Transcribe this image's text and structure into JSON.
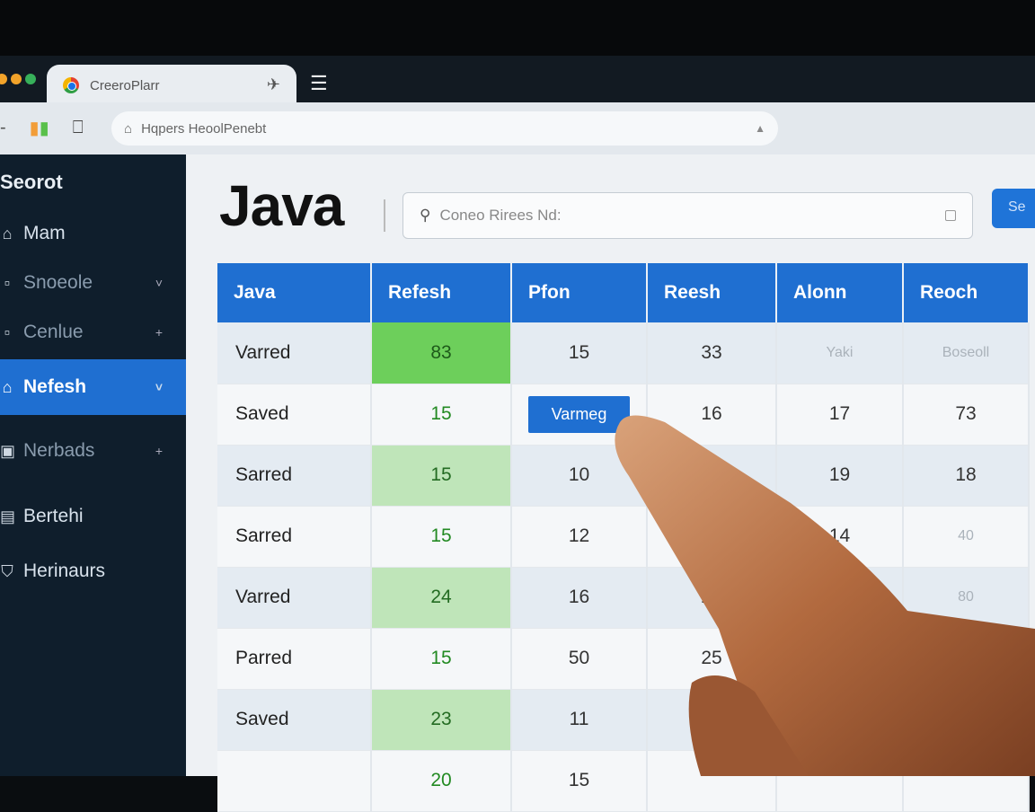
{
  "browser": {
    "tab_title": "CreeroPlarr",
    "address": "Hqpers HeoolPenebt"
  },
  "sidebar": {
    "title": "Seorot",
    "items": [
      {
        "label": "Mam",
        "icon": "home-icon"
      },
      {
        "label": "Snoeole",
        "icon": "square-icon",
        "trail": "˅"
      },
      {
        "label": "Cenlue",
        "icon": "square-icon",
        "trail": "+"
      },
      {
        "label": "Nefesh",
        "icon": "home-icon",
        "trail": "˅",
        "active": true
      },
      {
        "label": "Nerbads",
        "icon": "lock-icon",
        "trail": "+"
      },
      {
        "label": "Bertehi",
        "icon": "list-icon"
      },
      {
        "label": "Herinaurs",
        "icon": "shield-icon"
      }
    ]
  },
  "main": {
    "title": "Java",
    "search_placeholder": "Coneo Rirees Nd:",
    "search_button": "Se"
  },
  "table": {
    "headers": [
      "Java",
      "Refesh",
      "Pfon",
      "Reesh",
      "Alonn",
      "Reoch"
    ],
    "rows": [
      [
        "Varred",
        "83",
        "15",
        "33",
        "Yaki",
        "Boseoll"
      ],
      [
        "Saved",
        "15",
        "Varmeg",
        "16",
        "17",
        "73"
      ],
      [
        "Sarred",
        "15",
        "10",
        "",
        "19",
        "18"
      ],
      [
        "Sarred",
        "15",
        "12",
        "",
        "14",
        "40"
      ],
      [
        "Varred",
        "24",
        "16",
        "20",
        "",
        "80"
      ],
      [
        "Parred",
        "15",
        "50",
        "25",
        "",
        ""
      ],
      [
        "Saved",
        "23",
        "11",
        "",
        "",
        ""
      ],
      [
        "",
        "20",
        "15",
        "",
        "",
        ""
      ]
    ]
  },
  "colors": {
    "accent": "#1f6fd1",
    "sidebar": "#0f1e2c",
    "highlight_green": "#6dcf5b",
    "light_green": "#bfe5b9"
  }
}
